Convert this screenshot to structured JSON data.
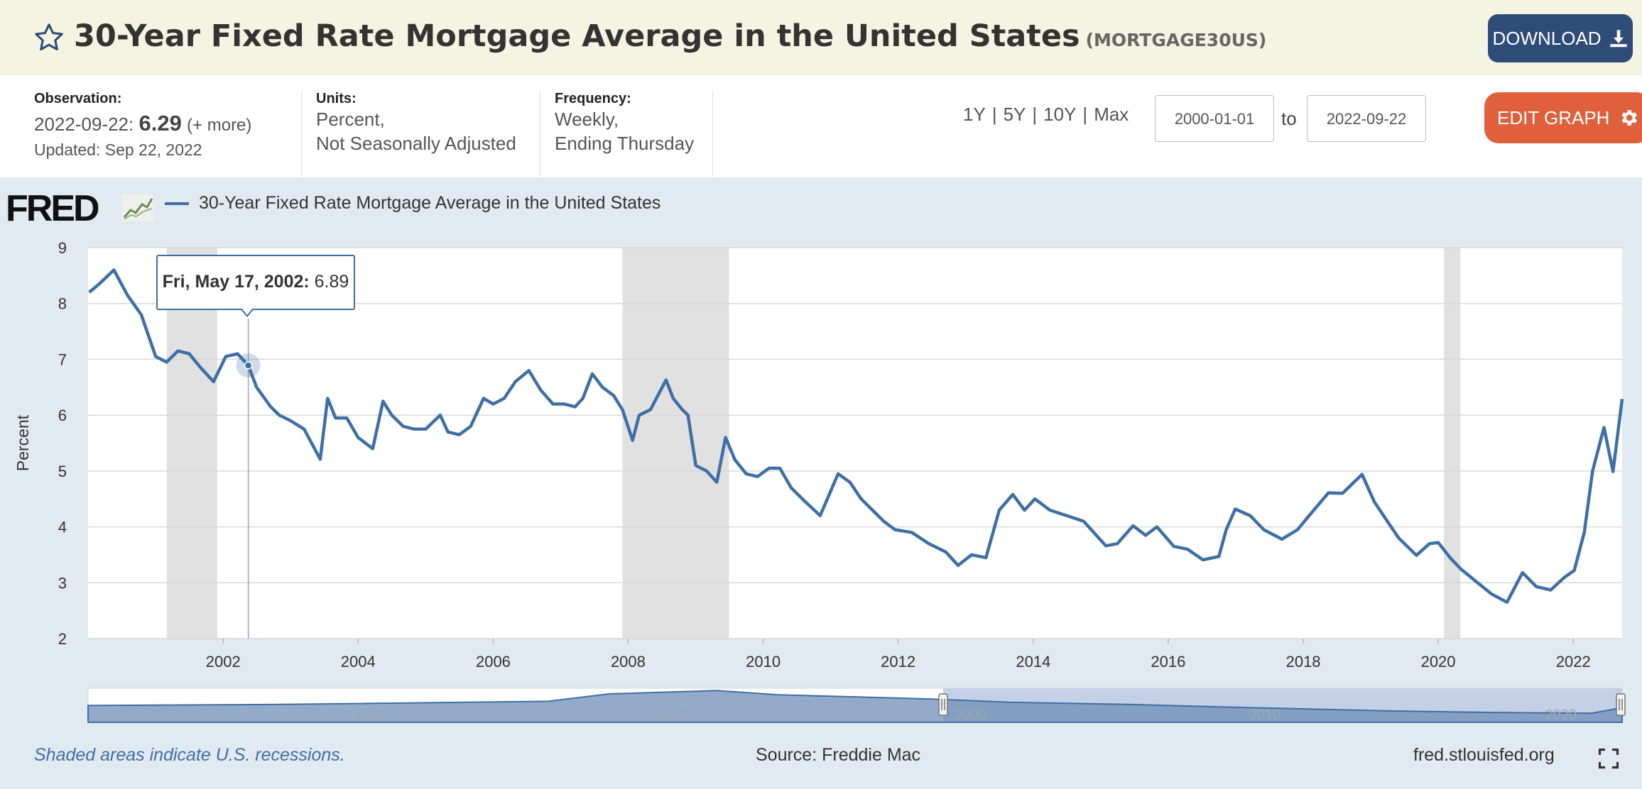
{
  "header": {
    "title": "30-Year Fixed Rate Mortgage Average in the United States",
    "series_id": "(MORTGAGE30US)",
    "download_label": "DOWNLOAD"
  },
  "info": {
    "observation_label": "Observation:",
    "observation_date": "2022-09-22:",
    "observation_value": "6.29",
    "observation_more": "(+ more)",
    "updated": "Updated: Sep 22, 2022",
    "units_label": "Units:",
    "units_line1": "Percent,",
    "units_line2": "Not Seasonally Adjusted",
    "frequency_label": "Frequency:",
    "frequency_line1": "Weekly,",
    "frequency_line2": "Ending Thursday"
  },
  "range": {
    "links": [
      "1Y",
      "5Y",
      "10Y",
      "Max"
    ],
    "start_date": "2000-01-01",
    "to_label": "to",
    "end_date": "2022-09-22",
    "edit_label": "EDIT GRAPH"
  },
  "colors": {
    "header_bg": "#f3f4e1",
    "download_bg": "#2f4b78",
    "edit_bg": "#e0603c",
    "series": "#3f6fa5",
    "recession": "#e1e1e1",
    "chart_bg": "#e1e9f1"
  },
  "footer": {
    "shade_note": "Shaded areas indicate U.S. recessions.",
    "source": "Source: Freddie Mac",
    "site": "fred.stlouisfed.org"
  },
  "tooltip": {
    "date": "Fri, May 17, 2002:",
    "value": "6.89"
  },
  "logo_text": "FRED",
  "chart_data": {
    "type": "line",
    "ylabel": "Percent",
    "xlim": [
      "2000-01-01",
      "2022-09-22"
    ],
    "ylim": [
      2,
      9
    ],
    "yticks": [
      2,
      3,
      4,
      5,
      6,
      7,
      8,
      9
    ],
    "xticks": [
      "2002",
      "2004",
      "2006",
      "2008",
      "2010",
      "2012",
      "2014",
      "2016",
      "2018",
      "2020",
      "2022"
    ],
    "grid": true,
    "legend": "top-left",
    "recessions": [
      [
        "2001-03-01",
        "2001-11-30"
      ],
      [
        "2007-12-01",
        "2009-06-30"
      ],
      [
        "2020-02-01",
        "2020-04-30"
      ]
    ],
    "navigator_labels": [
      "1980",
      "1990",
      "2000",
      "2010",
      "2020"
    ],
    "series": [
      {
        "name": "30-Year Fixed Rate Mortgage Average in the United States",
        "x": [
          "2000-01-07",
          "2000-03-01",
          "2000-05-20",
          "2000-08-01",
          "2000-10-15",
          "2001-01-01",
          "2001-03-01",
          "2001-05-01",
          "2001-07-01",
          "2001-09-01",
          "2001-11-10",
          "2002-01-15",
          "2002-03-20",
          "2002-05-17",
          "2002-07-01",
          "2002-09-15",
          "2002-11-01",
          "2003-01-01",
          "2003-03-15",
          "2003-06-10",
          "2003-07-20",
          "2003-09-01",
          "2003-11-01",
          "2004-01-01",
          "2004-03-20",
          "2004-05-15",
          "2004-07-01",
          "2004-09-01",
          "2004-11-01",
          "2005-01-01",
          "2005-03-20",
          "2005-05-01",
          "2005-07-01",
          "2005-09-01",
          "2005-11-10",
          "2006-01-01",
          "2006-03-01",
          "2006-05-01",
          "2006-07-13",
          "2006-09-15",
          "2006-11-20",
          "2007-01-20",
          "2007-03-20",
          "2007-05-01",
          "2007-06-21",
          "2007-08-15",
          "2007-10-15",
          "2007-12-01",
          "2008-01-25",
          "2008-03-01",
          "2008-05-01",
          "2008-07-24",
          "2008-09-01",
          "2008-10-20",
          "2008-11-20",
          "2009-01-01",
          "2009-03-01",
          "2009-04-25",
          "2009-06-11",
          "2009-08-01",
          "2009-10-01",
          "2009-12-01",
          "2010-02-01",
          "2010-04-01",
          "2010-06-01",
          "2010-08-01",
          "2010-11-05",
          "2011-02-10",
          "2011-04-15",
          "2011-06-15",
          "2011-08-15",
          "2011-10-15",
          "2011-12-15",
          "2012-03-15",
          "2012-06-15",
          "2012-09-15",
          "2012-11-20",
          "2013-02-01",
          "2013-04-20",
          "2013-07-01",
          "2013-09-12",
          "2013-11-15",
          "2014-01-10",
          "2014-04-01",
          "2014-07-01",
          "2014-10-01",
          "2015-01-29",
          "2015-04-01",
          "2015-06-25",
          "2015-09-01",
          "2015-11-01",
          "2016-02-01",
          "2016-04-15",
          "2016-07-07",
          "2016-10-01",
          "2016-11-10",
          "2016-12-29",
          "2017-03-20",
          "2017-06-01",
          "2017-09-07",
          "2017-12-01",
          "2018-02-01",
          "2018-05-17",
          "2018-08-01",
          "2018-11-15",
          "2019-01-20",
          "2019-04-01",
          "2019-06-01",
          "2019-09-05",
          "2019-11-15",
          "2020-01-01",
          "2020-03-05",
          "2020-05-01",
          "2020-08-01",
          "2020-10-15",
          "2021-01-07",
          "2021-04-01",
          "2021-06-15",
          "2021-09-01",
          "2021-11-15",
          "2022-01-06",
          "2022-03-01",
          "2022-04-15",
          "2022-06-16",
          "2022-08-04",
          "2022-09-22"
        ],
        "values": [
          8.2,
          8.35,
          8.6,
          8.15,
          7.8,
          7.05,
          6.95,
          7.15,
          7.1,
          6.85,
          6.6,
          7.05,
          7.1,
          6.89,
          6.5,
          6.15,
          6.0,
          5.9,
          5.75,
          5.21,
          6.3,
          5.95,
          5.95,
          5.6,
          5.4,
          6.25,
          6.0,
          5.8,
          5.75,
          5.75,
          6.0,
          5.7,
          5.65,
          5.8,
          6.3,
          6.2,
          6.3,
          6.6,
          6.8,
          6.45,
          6.2,
          6.2,
          6.15,
          6.3,
          6.74,
          6.5,
          6.35,
          6.1,
          5.55,
          6.0,
          6.1,
          6.63,
          6.3,
          6.1,
          6.0,
          5.1,
          5.0,
          4.8,
          5.6,
          5.2,
          4.95,
          4.9,
          5.05,
          5.05,
          4.7,
          4.5,
          4.2,
          4.95,
          4.8,
          4.5,
          4.3,
          4.1,
          3.95,
          3.9,
          3.7,
          3.55,
          3.31,
          3.5,
          3.45,
          4.3,
          4.58,
          4.3,
          4.5,
          4.3,
          4.2,
          4.1,
          3.66,
          3.7,
          4.02,
          3.85,
          4.0,
          3.65,
          3.6,
          3.41,
          3.47,
          3.95,
          4.32,
          4.2,
          3.95,
          3.78,
          3.95,
          4.2,
          4.61,
          4.6,
          4.94,
          4.45,
          4.1,
          3.8,
          3.49,
          3.7,
          3.72,
          3.45,
          3.25,
          3.0,
          2.8,
          2.65,
          3.18,
          2.93,
          2.87,
          3.1,
          3.22,
          3.9,
          5.0,
          5.78,
          4.99,
          6.29
        ]
      }
    ]
  }
}
